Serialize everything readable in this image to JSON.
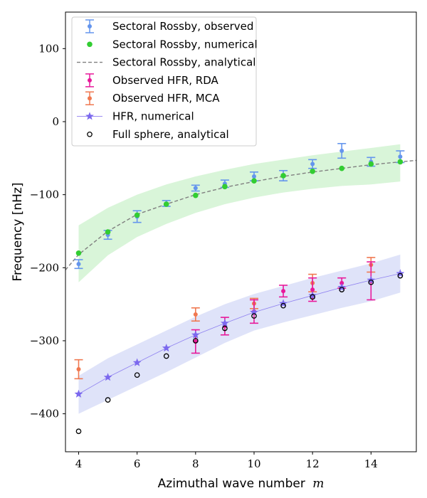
{
  "chart_data": {
    "type": "scatter",
    "xlabel_text": "Azimuthal wave number",
    "xlabel_symbol": "m",
    "ylabel": "Frequency [nHz]",
    "xlim": [
      3.55,
      15.55
    ],
    "ylim": [
      -452,
      150
    ],
    "xticks": [
      4,
      6,
      8,
      10,
      12,
      14
    ],
    "yticks": [
      100,
      0,
      -100,
      -200,
      -300,
      -400
    ],
    "ytick_labels": [
      "100",
      "0",
      "−100",
      "−200",
      "−300",
      "−400"
    ],
    "grid": false,
    "legend_position": "top-left",
    "colors": {
      "sectoral_observed": "#6495ed",
      "sectoral_numerical": "#32cd32",
      "sectoral_analytical": "#808080",
      "hfr_rda": "#e8189a",
      "hfr_mca": "#f07850",
      "hfr_numerical": "#7b68ee",
      "full_sphere": "#000000",
      "green_band": "#ccf2cc",
      "blue_band": "#d4daf7"
    },
    "bands": [
      {
        "name": "sectoral-band",
        "x": [
          4,
          5,
          6,
          7,
          8,
          9,
          10,
          11,
          12,
          13,
          14,
          15
        ],
        "upper": [
          -142,
          -118,
          -100,
          -86,
          -75,
          -66,
          -58,
          -52,
          -46,
          -41,
          -36,
          -31
        ],
        "lower": [
          -220,
          -183,
          -158,
          -140,
          -125,
          -113,
          -104,
          -97,
          -92,
          -88,
          -86,
          -82
        ]
      },
      {
        "name": "hfr-band",
        "x": [
          4,
          5,
          6,
          7,
          8,
          9,
          10,
          11,
          12,
          13,
          14,
          15
        ],
        "upper": [
          -348,
          -324,
          -305,
          -286,
          -267,
          -250,
          -236,
          -225,
          -214,
          -204,
          -194,
          -182
        ],
        "lower": [
          -400,
          -381,
          -362,
          -343,
          -323,
          -303,
          -286,
          -275,
          -265,
          -255,
          -246,
          -234
        ]
      }
    ],
    "series": [
      {
        "name": "Sectoral Rossby, observed",
        "x": [
          4,
          5,
          6,
          7,
          8,
          9,
          10,
          11,
          12,
          13,
          14,
          15
        ],
        "y": [
          -195,
          -155,
          -130,
          -112,
          -91,
          -85,
          -75,
          -74,
          -58,
          -40,
          -55,
          -48
        ],
        "err": [
          6,
          6,
          8,
          4,
          4,
          5,
          6,
          7,
          6,
          10,
          6,
          8
        ]
      },
      {
        "name": "Sectoral Rossby, numerical",
        "x": [
          4,
          5,
          6,
          7,
          8,
          9,
          10,
          11,
          12,
          13,
          14,
          15
        ],
        "y": [
          -180,
          -151,
          -128,
          -113,
          -101,
          -89,
          -81,
          -74,
          -68,
          -64,
          -58,
          -55
        ]
      },
      {
        "name": "Sectoral Rossby, analytical",
        "x": [
          3.55,
          4,
          5,
          6,
          7,
          8,
          9,
          10,
          11,
          12,
          13,
          14,
          15,
          15.55
        ],
        "y": [
          -203,
          -182,
          -150,
          -127,
          -113,
          -100,
          -90,
          -82,
          -75,
          -69,
          -64,
          -59,
          -55,
          -53
        ]
      },
      {
        "name": "Observed HFR, RDA",
        "x": [
          8,
          9,
          10,
          11,
          12,
          13,
          14
        ],
        "y": [
          -301,
          -280,
          -260,
          -232,
          -230,
          -221,
          -218
        ],
        "err": [
          16,
          12,
          16,
          8,
          16,
          7,
          26
        ]
      },
      {
        "name": "Observed HFR, MCA",
        "x": [
          4,
          8,
          10,
          12,
          14
        ],
        "y": [
          -339,
          -264,
          -249,
          -221,
          -196
        ],
        "err": [
          13,
          9,
          7,
          12,
          10
        ]
      },
      {
        "name": "HFR, numerical",
        "x": [
          4,
          5,
          6,
          7,
          8,
          9,
          10,
          11,
          12,
          13,
          14,
          15
        ],
        "y": [
          -373,
          -350,
          -330,
          -310,
          -292,
          -276,
          -261,
          -249,
          -238,
          -227,
          -217,
          -208
        ]
      },
      {
        "name": "Full sphere, analytical",
        "x": [
          4,
          5,
          6,
          7,
          8,
          9,
          10,
          11,
          12,
          13,
          14,
          15
        ],
        "y": [
          -424,
          -381,
          -347,
          -321,
          -300,
          -283,
          -266,
          -252,
          -240,
          -230,
          -220,
          -211
        ]
      }
    ]
  }
}
